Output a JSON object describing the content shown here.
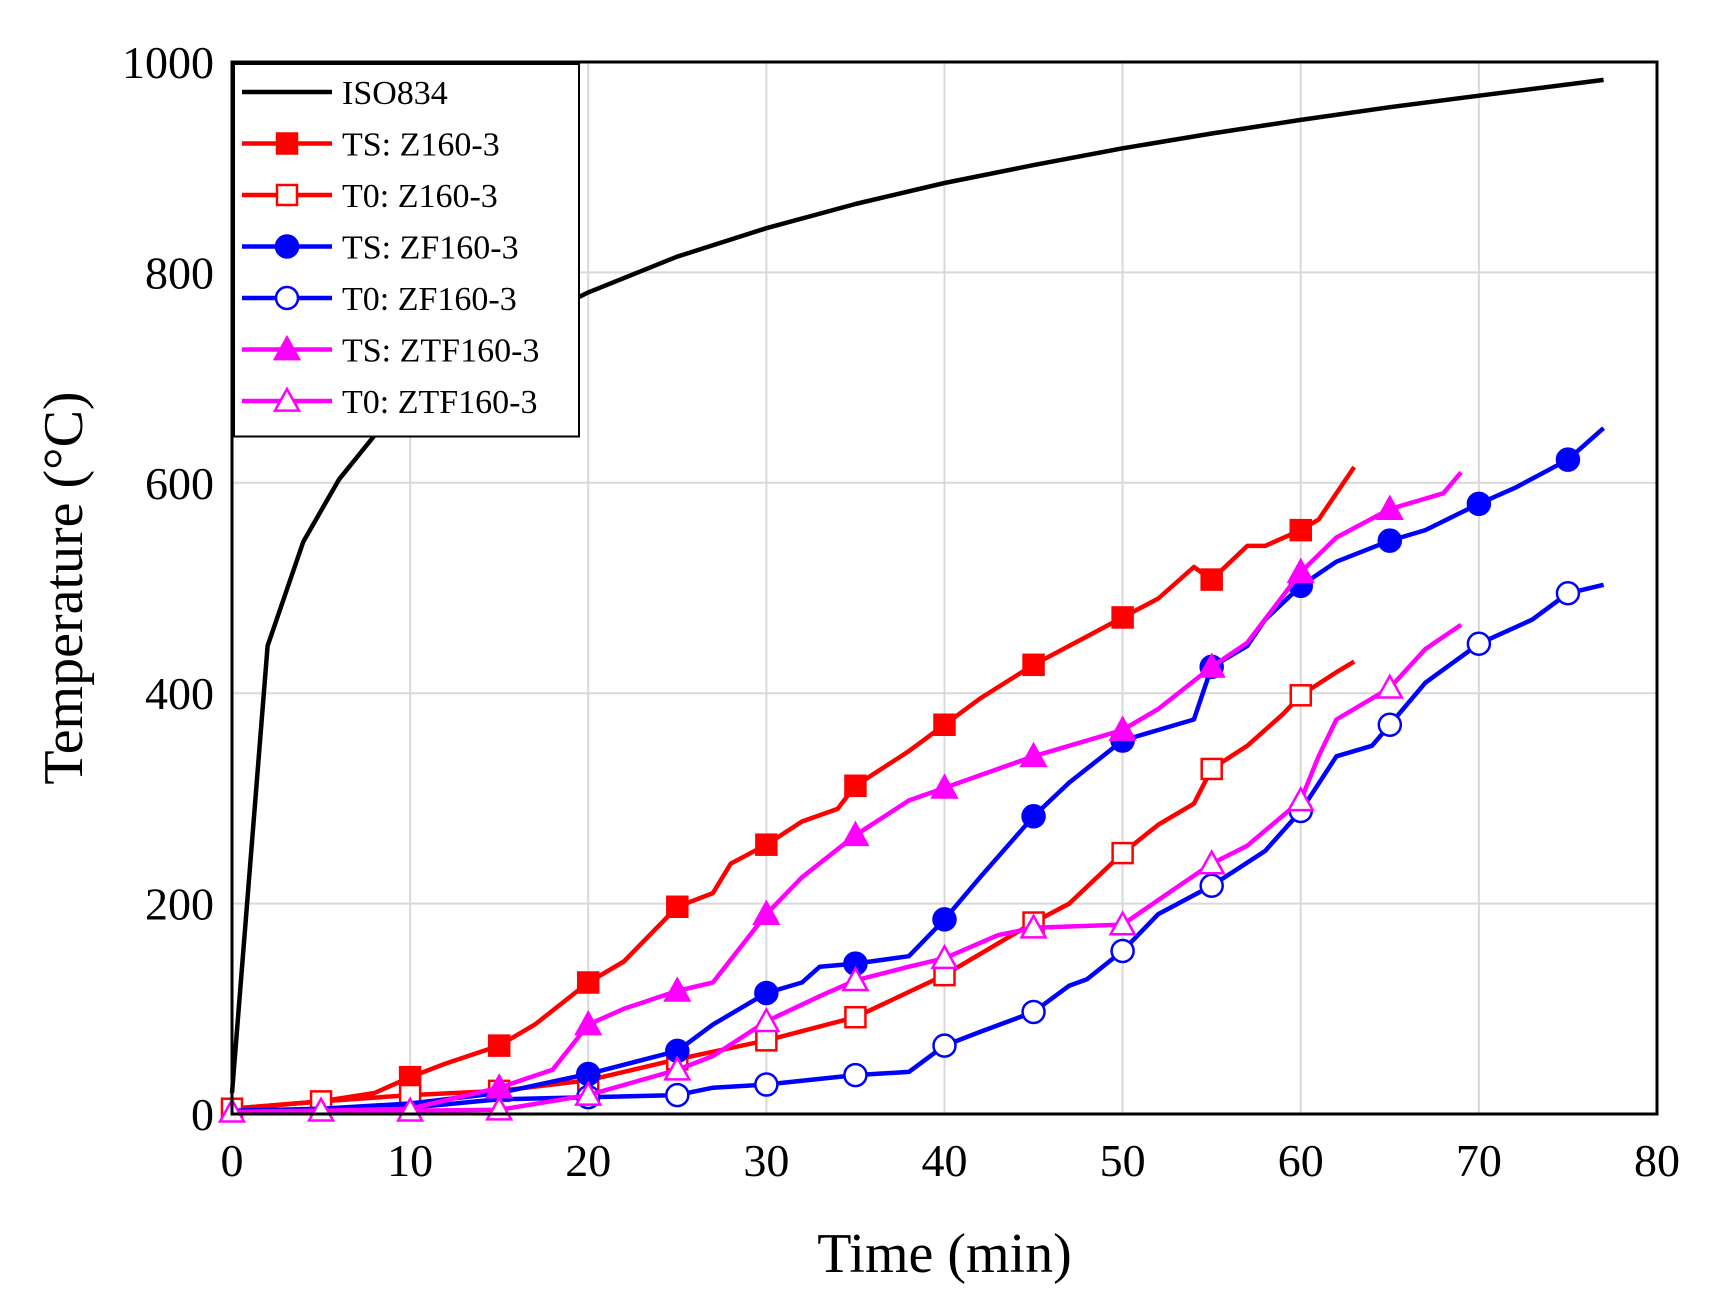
{
  "chart_data": {
    "type": "line",
    "title": "",
    "xlabel": "Time (min)",
    "ylabel": "Temperature (°C)",
    "xlim": [
      0,
      80
    ],
    "ylim": [
      0,
      1000
    ],
    "x_ticks": [
      0,
      10,
      20,
      30,
      40,
      50,
      60,
      70,
      80
    ],
    "y_ticks": [
      0,
      200,
      400,
      600,
      800,
      1000
    ],
    "grid": true,
    "legend_position": "top-left",
    "series": [
      {
        "name": "ISO834",
        "color": "#000000",
        "marker": "none",
        "x": [
          0,
          2,
          4,
          6,
          8,
          10,
          12,
          15,
          20,
          25,
          30,
          35,
          40,
          45,
          50,
          55,
          60,
          65,
          70,
          77
        ],
        "y": [
          20,
          445,
          544,
          603,
          645,
          678,
          705,
          739,
          781,
          815,
          842,
          865,
          885,
          902,
          918,
          932,
          945,
          957,
          968,
          983
        ]
      },
      {
        "name": "TS: Z160-3",
        "color": "#ff0000",
        "marker": "square-filled",
        "x": [
          0,
          5,
          8,
          10,
          12,
          15,
          17,
          20,
          22,
          25,
          27,
          28,
          30,
          32,
          34,
          35,
          38,
          40,
          42,
          45,
          47,
          50,
          52,
          54,
          55,
          57,
          58,
          60,
          61,
          63
        ],
        "y": [
          5,
          12,
          20,
          35,
          48,
          65,
          85,
          125,
          145,
          197,
          210,
          238,
          256,
          278,
          290,
          312,
          345,
          370,
          395,
          427,
          445,
          472,
          490,
          520,
          508,
          540,
          540,
          555,
          565,
          615
        ],
        "marker_x": [
          10,
          15,
          20,
          25,
          30,
          35,
          40,
          45,
          50,
          55,
          60
        ]
      },
      {
        "name": "T0: Z160-3",
        "color": "#ff0000",
        "marker": "square-open",
        "x": [
          0,
          5,
          10,
          15,
          20,
          25,
          30,
          35,
          40,
          45,
          47,
          50,
          52,
          54,
          55,
          57,
          59,
          60,
          62,
          63
        ],
        "y": [
          5,
          12,
          18,
          22,
          32,
          52,
          70,
          92,
          132,
          182,
          200,
          248,
          275,
          295,
          328,
          350,
          380,
          398,
          420,
          430
        ],
        "marker_x": [
          0,
          5,
          10,
          15,
          20,
          25,
          30,
          35,
          40,
          45,
          50,
          55,
          60
        ]
      },
      {
        "name": "TS: ZF160-3",
        "color": "#0000ff",
        "marker": "circle-filled",
        "x": [
          0,
          5,
          10,
          15,
          20,
          25,
          27,
          30,
          32,
          33,
          35,
          38,
          40,
          42,
          45,
          47,
          50,
          52,
          54,
          55,
          57,
          58,
          60,
          62,
          65,
          67,
          70,
          72,
          75,
          77
        ],
        "y": [
          3,
          5,
          10,
          20,
          38,
          60,
          85,
          115,
          125,
          140,
          143,
          150,
          185,
          225,
          283,
          315,
          355,
          365,
          375,
          425,
          445,
          470,
          502,
          525,
          545,
          555,
          580,
          595,
          622,
          652
        ],
        "marker_x": [
          20,
          25,
          30,
          35,
          40,
          45,
          50,
          55,
          60,
          65,
          70,
          75
        ]
      },
      {
        "name": "T0: ZF160-3",
        "color": "#0000ff",
        "marker": "circle-open",
        "x": [
          0,
          5,
          10,
          15,
          20,
          25,
          27,
          30,
          35,
          38,
          40,
          42,
          45,
          47,
          48,
          50,
          52,
          55,
          58,
          60,
          62,
          64,
          65,
          67,
          70,
          73,
          75,
          77
        ],
        "y": [
          3,
          4,
          6,
          14,
          16,
          18,
          25,
          28,
          37,
          40,
          65,
          78,
          97,
          122,
          128,
          155,
          190,
          217,
          250,
          288,
          340,
          350,
          370,
          410,
          447,
          470,
          495,
          503
        ],
        "marker_x": [
          20,
          25,
          30,
          35,
          40,
          45,
          50,
          55,
          60,
          65,
          70,
          75
        ]
      },
      {
        "name": "TS: ZTF160-3",
        "color": "#ff00ff",
        "marker": "triangle-filled",
        "x": [
          0,
          5,
          10,
          15,
          18,
          20,
          22,
          25,
          27,
          30,
          32,
          35,
          38,
          40,
          42,
          45,
          50,
          52,
          55,
          57,
          60,
          62,
          65,
          67,
          68,
          69
        ],
        "y": [
          2,
          3,
          5,
          25,
          42,
          85,
          100,
          117,
          125,
          190,
          225,
          265,
          298,
          310,
          322,
          340,
          365,
          385,
          425,
          448,
          515,
          548,
          575,
          585,
          590,
          610
        ],
        "marker_x": [
          15,
          20,
          25,
          30,
          35,
          40,
          45,
          50,
          55,
          60,
          65
        ]
      },
      {
        "name": "T0: ZTF160-3",
        "color": "#ff00ff",
        "marker": "triangle-open",
        "x": [
          0,
          5,
          10,
          15,
          20,
          25,
          27,
          30,
          33,
          35,
          38,
          40,
          43,
          45,
          50,
          53,
          55,
          57,
          60,
          61,
          62,
          65,
          67,
          69
        ],
        "y": [
          2,
          3,
          3,
          4,
          18,
          42,
          55,
          88,
          112,
          127,
          140,
          148,
          170,
          177,
          180,
          215,
          238,
          255,
          298,
          340,
          375,
          405,
          442,
          465
        ],
        "marker_x": [
          0,
          5,
          10,
          15,
          20,
          25,
          30,
          35,
          40,
          45,
          50,
          55,
          60,
          65
        ]
      }
    ]
  }
}
